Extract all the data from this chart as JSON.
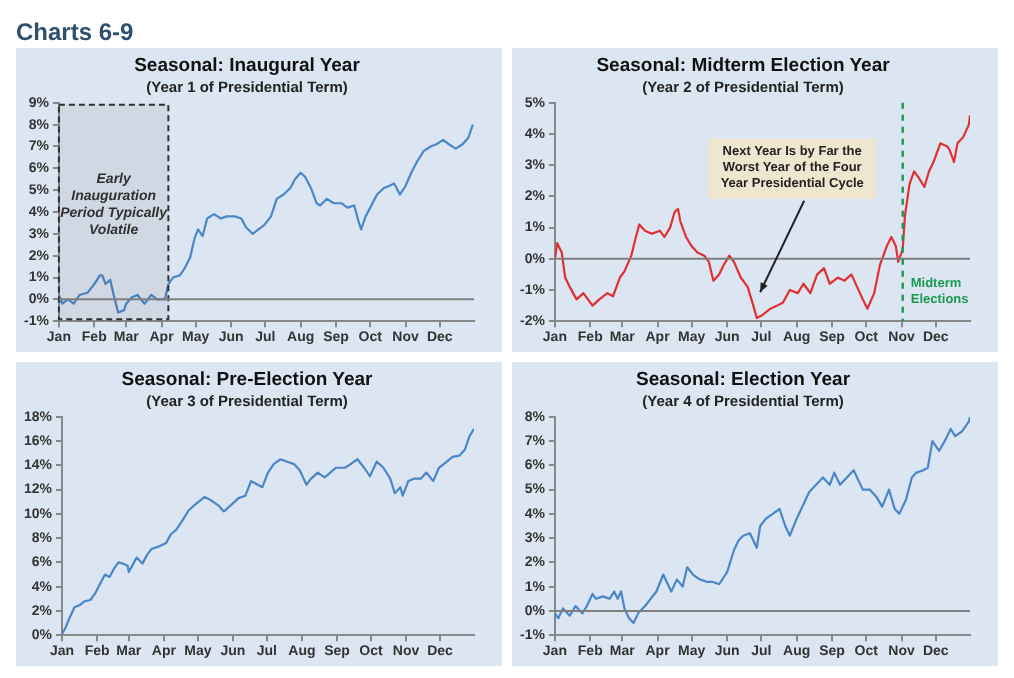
{
  "chart_data": [
    {
      "type": "line",
      "title": "Seasonal: Inaugural Year",
      "subtitle": "(Year 1 of Presidential Term)",
      "annotations": [
        "Charts 6-9"
      ],
      "xlim": [
        "--01-01",
        "--12-31"
      ],
      "xticks": [
        {
          "value": "--01-01",
          "label": "Jan"
        },
        {
          "value": "--02-01",
          "label": "Feb"
        },
        {
          "value": "--03-01",
          "label": "Mar"
        },
        {
          "value": "--04-01",
          "label": "Apr"
        },
        {
          "value": "--05-01",
          "label": "May"
        },
        {
          "value": "--06-01",
          "label": "Jun"
        },
        {
          "value": "--07-01",
          "label": "Jul"
        },
        {
          "value": "--08-01",
          "label": "Aug"
        },
        {
          "value": "--09-01",
          "label": "Sep"
        },
        {
          "value": "--10-01",
          "label": "Oct"
        },
        {
          "value": "--11-01",
          "label": "Nov"
        },
        {
          "value": "--12-01",
          "label": "Dec"
        }
      ],
      "ylim": [
        -1,
        9
      ],
      "yticks": [
        {
          "value": -1,
          "label": "-1%"
        },
        {
          "value": 0,
          "label": "0%"
        },
        {
          "value": 1,
          "label": "1%"
        },
        {
          "value": 2,
          "label": "2%"
        },
        {
          "value": 3,
          "label": "3%"
        },
        {
          "value": 4,
          "label": "4%"
        },
        {
          "value": 5,
          "label": "5%"
        },
        {
          "value": 6,
          "label": "6%"
        },
        {
          "value": 7,
          "label": "7%"
        },
        {
          "value": 8,
          "label": "8%"
        },
        {
          "value": 9,
          "label": "9%"
        }
      ],
      "ref_lines": [
        {
          "axis": "y",
          "value": 0,
          "color": "#7f7f7f"
        }
      ],
      "bands": [
        {
          "axis": "x",
          "from": "--01-01",
          "to": "--04-07",
          "label": "Early Inauguration Period Typically Volatile",
          "color": "#303030"
        }
      ],
      "series": [
        {
          "color": "#4a86c8",
          "x": [
            "--01-01",
            "--01-04",
            "--01-09",
            "--01-14",
            "--01-19",
            "--01-26",
            "--02-01",
            "--02-06",
            "--02-08",
            "--02-11",
            "--02-15",
            "--02-18",
            "--02-22",
            "--02-27",
            "--03-01",
            "--03-06",
            "--03-11",
            "--03-17",
            "--03-23",
            "--03-28",
            "--04-04",
            "--04-07",
            "--04-11",
            "--04-17",
            "--04-21",
            "--04-26",
            "--04-30",
            "--05-03",
            "--05-07",
            "--05-11",
            "--05-17",
            "--05-23",
            "--05-28",
            "--06-04",
            "--06-10",
            "--06-14",
            "--06-20",
            "--06-25",
            "--06-30",
            "--07-06",
            "--07-11",
            "--07-17",
            "--07-23",
            "--07-27",
            "--08-01",
            "--08-05",
            "--08-10",
            "--08-15",
            "--08-18",
            "--08-24",
            "--08-30",
            "--09-06",
            "--09-11",
            "--09-17",
            "--09-20",
            "--09-23",
            "--09-27",
            "--10-01",
            "--10-07",
            "--10-13",
            "--10-18",
            "--10-22",
            "--10-27",
            "--11-01",
            "--11-06",
            "--11-11",
            "--11-17",
            "--11-23",
            "--11-28",
            "--12-04",
            "--12-09",
            "--12-15",
            "--12-21",
            "--12-26",
            "--12-30"
          ],
          "values": [
            0.2,
            -0.2,
            0,
            -0.2,
            0.2,
            0.3,
            0.7,
            1.1,
            1.1,
            0.7,
            0.9,
            0.2,
            -0.6,
            -0.5,
            -0.2,
            0.1,
            0.2,
            -0.2,
            0.2,
            0,
            0,
            0.7,
            1,
            1.1,
            1.4,
            1.9,
            2.8,
            3.2,
            2.9,
            3.7,
            3.9,
            3.7,
            3.8,
            3.8,
            3.7,
            3.3,
            3,
            3.2,
            3.4,
            3.8,
            4.6,
            4.8,
            5.1,
            5.5,
            5.8,
            5.6,
            5.1,
            4.4,
            4.3,
            4.6,
            4.4,
            4.4,
            4.2,
            4.3,
            3.7,
            3.2,
            3.8,
            4.2,
            4.8,
            5.1,
            5.2,
            5.3,
            4.8,
            5.2,
            5.8,
            6.3,
            6.8,
            7,
            7.1,
            7.3,
            7.1,
            6.9,
            7.1,
            7.4,
            8
          ]
        }
      ]
    },
    {
      "type": "line",
      "title": "Seasonal: Midterm Election Year",
      "subtitle": "(Year 2 of Presidential Term)",
      "annotations": [
        {
          "text": "Next Year Is by Far the Worst Year of the Four Year Presidential Cycle",
          "x": "--06-30",
          "y": -1.2
        }
      ],
      "xlim": [
        "--01-01",
        "--12-31"
      ],
      "xticks": [
        {
          "value": "--01-01",
          "label": "Jan"
        },
        {
          "value": "--02-01",
          "label": "Feb"
        },
        {
          "value": "--03-01",
          "label": "Mar"
        },
        {
          "value": "--04-01",
          "label": "Apr"
        },
        {
          "value": "--05-01",
          "label": "May"
        },
        {
          "value": "--06-01",
          "label": "Jun"
        },
        {
          "value": "--07-01",
          "label": "Jul"
        },
        {
          "value": "--08-01",
          "label": "Aug"
        },
        {
          "value": "--09-01",
          "label": "Sep"
        },
        {
          "value": "--10-01",
          "label": "Oct"
        },
        {
          "value": "--11-01",
          "label": "Nov"
        },
        {
          "value": "--12-01",
          "label": "Dec"
        }
      ],
      "ylim": [
        -2,
        5
      ],
      "yticks": [
        {
          "value": -2,
          "label": "-2%"
        },
        {
          "value": -1,
          "label": "-1%"
        },
        {
          "value": 0,
          "label": "0%"
        },
        {
          "value": 1,
          "label": "1%"
        },
        {
          "value": 2,
          "label": "2%"
        },
        {
          "value": 3,
          "label": "3%"
        },
        {
          "value": 4,
          "label": "4%"
        },
        {
          "value": 5,
          "label": "5%"
        }
      ],
      "ref_lines": [
        {
          "axis": "y",
          "value": 0,
          "color": "#7f7f7f"
        },
        {
          "axis": "x",
          "value": "--11-02",
          "label": "Midterm Elections",
          "color": "#1a9850",
          "line_style": "dashed"
        }
      ],
      "series": [
        {
          "color": "#e03030",
          "x": [
            "--01-01",
            "--01-03",
            "--01-07",
            "--01-10",
            "--01-14",
            "--01-20",
            "--01-26",
            "--02-03",
            "--02-09",
            "--02-16",
            "--02-21",
            "--02-27",
            "--03-03",
            "--03-09",
            "--03-13",
            "--03-16",
            "--03-21",
            "--03-27",
            "--04-03",
            "--04-07",
            "--04-12",
            "--04-16",
            "--04-19",
            "--04-21",
            "--04-26",
            "--05-01",
            "--05-06",
            "--05-12",
            "--05-16",
            "--05-20",
            "--05-25",
            "--05-29",
            "--06-03",
            "--06-07",
            "--06-13",
            "--06-19",
            "--06-24",
            "--06-27",
            "--07-02",
            "--07-09",
            "--07-15",
            "--07-20",
            "--07-26",
            "--08-02",
            "--08-07",
            "--08-13",
            "--08-19",
            "--08-25",
            "--08-30",
            "--09-06",
            "--09-12",
            "--09-18",
            "--09-23",
            "--09-28",
            "--10-02",
            "--10-08",
            "--10-13",
            "--10-19",
            "--10-23",
            "--10-27",
            "--10-29",
            "--11-02",
            "--11-04",
            "--11-08",
            "--11-12",
            "--11-16",
            "--11-21",
            "--11-25",
            "--11-29",
            "--12-05",
            "--12-11",
            "--12-13",
            "--12-17",
            "--12-20",
            "--12-25",
            "--12-30",
            "--12-31"
          ],
          "values": [
            0,
            0.5,
            0.2,
            -0.6,
            -0.9,
            -1.3,
            -1.1,
            -1.5,
            -1.3,
            -1.1,
            -1.2,
            -0.6,
            -0.4,
            0.1,
            0.7,
            1.1,
            0.9,
            0.8,
            0.9,
            0.7,
            1,
            1.5,
            1.6,
            1.2,
            0.7,
            0.4,
            0.2,
            0.1,
            -0.1,
            -0.7,
            -0.5,
            -0.2,
            0.1,
            -0.1,
            -0.6,
            -0.9,
            -1.5,
            -1.9,
            -1.8,
            -1.6,
            -1.5,
            -1.4,
            -1,
            -1.1,
            -0.8,
            -1.1,
            -0.5,
            -0.3,
            -0.8,
            -0.6,
            -0.7,
            -0.5,
            -0.9,
            -1.3,
            -1.6,
            -1.1,
            -0.2,
            0.4,
            0.7,
            0.4,
            -0.1,
            0.3,
            1.4,
            2.4,
            2.8,
            2.6,
            2.3,
            2.8,
            3.1,
            3.7,
            3.6,
            3.5,
            3.1,
            3.7,
            3.9,
            4.3,
            4.6
          ]
        }
      ]
    },
    {
      "type": "line",
      "title": "Seasonal: Pre-Election Year",
      "subtitle": "(Year 3 of Presidential Term)",
      "xlim": [
        "--01-01",
        "--12-31"
      ],
      "xticks": [
        {
          "value": "--01-01",
          "label": "Jan"
        },
        {
          "value": "--02-01",
          "label": "Feb"
        },
        {
          "value": "--03-01",
          "label": "Mar"
        },
        {
          "value": "--04-01",
          "label": "Apr"
        },
        {
          "value": "--05-01",
          "label": "May"
        },
        {
          "value": "--06-01",
          "label": "Jun"
        },
        {
          "value": "--07-01",
          "label": "Jul"
        },
        {
          "value": "--08-01",
          "label": "Aug"
        },
        {
          "value": "--09-01",
          "label": "Sep"
        },
        {
          "value": "--10-01",
          "label": "Oct"
        },
        {
          "value": "--11-01",
          "label": "Nov"
        },
        {
          "value": "--12-01",
          "label": "Dec"
        }
      ],
      "ylim": [
        0,
        18
      ],
      "yticks": [
        {
          "value": 0,
          "label": "0%"
        },
        {
          "value": 2,
          "label": "2%"
        },
        {
          "value": 4,
          "label": "4%"
        },
        {
          "value": 6,
          "label": "6%"
        },
        {
          "value": 8,
          "label": "8%"
        },
        {
          "value": 10,
          "label": "10%"
        },
        {
          "value": 12,
          "label": "12%"
        },
        {
          "value": 14,
          "label": "14%"
        },
        {
          "value": 16,
          "label": "16%"
        },
        {
          "value": 18,
          "label": "18%"
        }
      ],
      "series": [
        {
          "color": "#4a86c8",
          "x": [
            "--01-01",
            "--01-04",
            "--01-08",
            "--01-12",
            "--01-17",
            "--01-21",
            "--01-26",
            "--01-30",
            "--02-04",
            "--02-08",
            "--02-12",
            "--02-16",
            "--02-20",
            "--02-24",
            "--02-28",
            "--03-01",
            "--03-05",
            "--03-08",
            "--03-13",
            "--03-17",
            "--03-21",
            "--03-27",
            "--04-03",
            "--04-07",
            "--04-12",
            "--04-17",
            "--04-23",
            "--04-29",
            "--05-03",
            "--05-07",
            "--05-13",
            "--05-19",
            "--05-24",
            "--05-30",
            "--06-06",
            "--06-12",
            "--06-17",
            "--06-23",
            "--06-27",
            "--07-02",
            "--07-07",
            "--07-13",
            "--07-19",
            "--07-25",
            "--07-30",
            "--08-05",
            "--08-09",
            "--08-15",
            "--08-21",
            "--08-26",
            "--08-31",
            "--09-08",
            "--09-13",
            "--09-19",
            "--09-25",
            "--09-30",
            "--10-06",
            "--10-12",
            "--10-18",
            "--10-22",
            "--10-27",
            "--10-29",
            "--11-03",
            "--11-08",
            "--11-14",
            "--11-19",
            "--11-25",
            "--11-30",
            "--12-07",
            "--12-12",
            "--12-18",
            "--12-23",
            "--12-27",
            "--12-31"
          ],
          "values": [
            0.1,
            0.6,
            1.5,
            2.3,
            2.5,
            2.8,
            2.9,
            3.4,
            4.3,
            5,
            4.8,
            5.5,
            6,
            5.9,
            5.7,
            5.2,
            5.9,
            6.4,
            5.9,
            6.6,
            7.1,
            7.3,
            7.6,
            8.3,
            8.7,
            9.4,
            10.3,
            10.8,
            11.1,
            11.4,
            11.1,
            10.7,
            10.2,
            10.7,
            11.3,
            11.5,
            12.7,
            12.4,
            12.2,
            13.4,
            14.1,
            14.5,
            14.3,
            14.1,
            13.6,
            12.4,
            12.9,
            13.4,
            13,
            13.4,
            13.8,
            13.8,
            14.1,
            14.5,
            13.8,
            13.1,
            14.3,
            13.8,
            12.9,
            11.7,
            12.2,
            11.5,
            12.7,
            12.9,
            12.9,
            13.4,
            12.7,
            13.8,
            14.3,
            14.7,
            14.8,
            15.3,
            16.4,
            17
          ]
        }
      ]
    },
    {
      "type": "line",
      "title": "Seasonal: Election Year",
      "subtitle": "(Year 4 of Presidential Term)",
      "xlim": [
        "--01-01",
        "--12-31"
      ],
      "xticks": [
        {
          "value": "--01-01",
          "label": "Jan"
        },
        {
          "value": "--02-01",
          "label": "Feb"
        },
        {
          "value": "--03-01",
          "label": "Mar"
        },
        {
          "value": "--04-01",
          "label": "Apr"
        },
        {
          "value": "--05-01",
          "label": "May"
        },
        {
          "value": "--06-01",
          "label": "Jun"
        },
        {
          "value": "--07-01",
          "label": "Jul"
        },
        {
          "value": "--08-01",
          "label": "Aug"
        },
        {
          "value": "--09-01",
          "label": "Sep"
        },
        {
          "value": "--10-01",
          "label": "Oct"
        },
        {
          "value": "--11-01",
          "label": "Nov"
        },
        {
          "value": "--12-01",
          "label": "Dec"
        }
      ],
      "ylim": [
        -1,
        8
      ],
      "yticks": [
        {
          "value": -1,
          "label": "-1%"
        },
        {
          "value": 0,
          "label": "0%"
        },
        {
          "value": 1,
          "label": "1%"
        },
        {
          "value": 2,
          "label": "2%"
        },
        {
          "value": 3,
          "label": "3%"
        },
        {
          "value": 4,
          "label": "4%"
        },
        {
          "value": 5,
          "label": "5%"
        },
        {
          "value": 6,
          "label": "6%"
        },
        {
          "value": 7,
          "label": "7%"
        },
        {
          "value": 8,
          "label": "8%"
        }
      ],
      "ref_lines": [
        {
          "axis": "y",
          "value": 0,
          "color": "#7f7f7f"
        }
      ],
      "series": [
        {
          "color": "#4a86c8",
          "x": [
            "--01-01",
            "--01-04",
            "--01-08",
            "--01-14",
            "--01-19",
            "--01-25",
            "--01-29",
            "--02-03",
            "--02-06",
            "--02-12",
            "--02-18",
            "--02-22",
            "--02-25",
            "--02-28",
            "--03-03",
            "--03-07",
            "--03-11",
            "--03-15",
            "--03-21",
            "--03-26",
            "--03-31",
            "--04-06",
            "--04-09",
            "--04-13",
            "--04-18",
            "--04-23",
            "--04-27",
            "--05-02",
            "--05-08",
            "--05-14",
            "--05-19",
            "--05-25",
            "--06-01",
            "--06-07",
            "--06-11",
            "--06-15",
            "--06-21",
            "--06-27",
            "--06-30",
            "--07-05",
            "--07-11",
            "--07-17",
            "--07-22",
            "--07-26",
            "--08-01",
            "--08-07",
            "--08-12",
            "--08-18",
            "--08-24",
            "--08-30",
            "--09-03",
            "--09-08",
            "--09-14",
            "--09-20",
            "--09-24",
            "--09-28",
            "--10-04",
            "--10-10",
            "--10-15",
            "--10-21",
            "--10-26",
            "--10-30",
            "--11-05",
            "--11-10",
            "--11-14",
            "--11-20",
            "--11-24",
            "--11-28",
            "--12-04",
            "--12-10",
            "--12-14",
            "--12-18",
            "--12-24",
            "--12-30",
            "--12-31"
          ],
          "values": [
            -0.1,
            -0.3,
            0.1,
            -0.2,
            0.2,
            -0.1,
            0.2,
            0.7,
            0.5,
            0.6,
            0.5,
            0.8,
            0.5,
            0.8,
            0.1,
            -0.3,
            -0.5,
            -0.1,
            0.2,
            0.5,
            0.8,
            1.5,
            1.2,
            0.8,
            1.3,
            1,
            1.8,
            1.5,
            1.3,
            1.2,
            1.2,
            1.1,
            1.6,
            2.5,
            2.9,
            3.1,
            3.2,
            2.6,
            3.5,
            3.8,
            4,
            4.2,
            3.5,
            3.1,
            3.8,
            4.4,
            4.9,
            5.2,
            5.5,
            5.2,
            5.7,
            5.2,
            5.5,
            5.8,
            5.4,
            5,
            5,
            4.7,
            4.3,
            5,
            4.2,
            4,
            4.6,
            5.5,
            5.7,
            5.8,
            5.9,
            7,
            6.6,
            7.1,
            7.5,
            7.2,
            7.4,
            7.8,
            8
          ]
        }
      ]
    }
  ]
}
